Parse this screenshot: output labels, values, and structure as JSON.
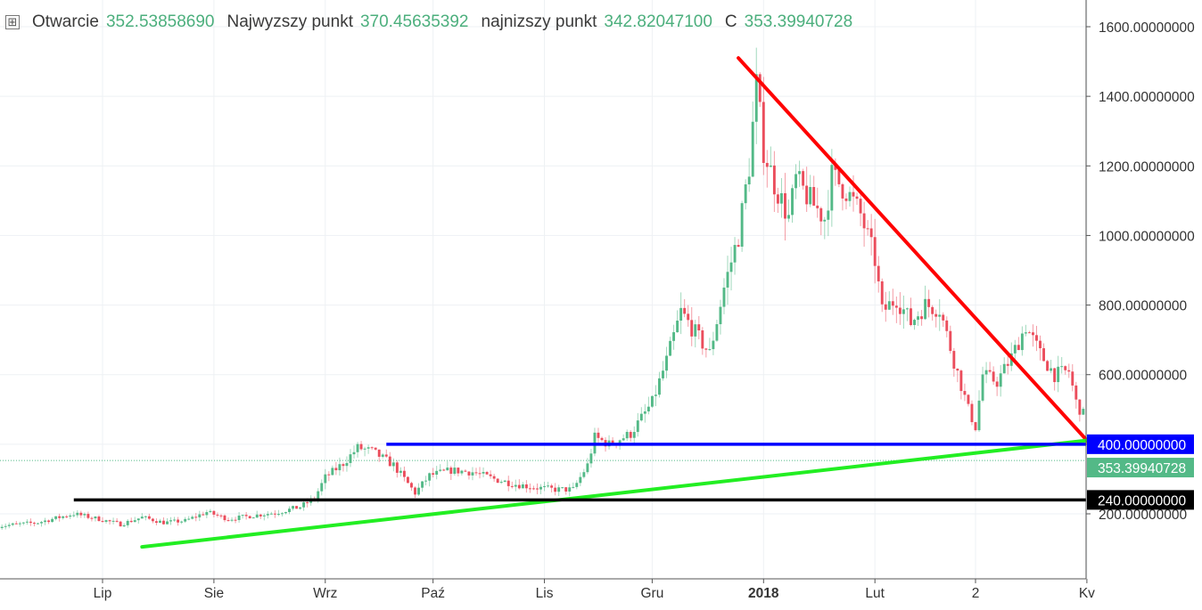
{
  "header": {
    "toggle_symbol": "⊞",
    "open_label": "Otwarcie",
    "open_value": "352.53858690",
    "high_label": "Najwyzszy punkt",
    "high_value": "370.45635392",
    "low_label": "najnizszy punkt",
    "low_value": "342.82047100",
    "close_label": "C",
    "close_value": "353.39940728"
  },
  "colors": {
    "up": "#53b987",
    "down": "#eb4d5c",
    "grid": "#eef1f4",
    "axis_text": "#333333",
    "resistance_line": "#ff0000",
    "support_line": "#22ee22",
    "level_400": "#0000ff",
    "level_240": "#000000",
    "price_badge": "#53b987"
  },
  "chart_data": {
    "type": "candlestick",
    "title": "",
    "xlabel": "",
    "ylabel": "",
    "ylim": [
      70,
      1650
    ],
    "y_ticks": [
      200,
      400,
      600,
      800,
      1000,
      1200,
      1400,
      1600
    ],
    "y_tick_labels": [
      "200.00000000",
      "400.00000000",
      "600.00000000",
      "800.00000000",
      "1000.00000000",
      "1200.00000000",
      "1400.00000000",
      "1600.00000000"
    ],
    "x_tick_labels": [
      {
        "label": "Lip",
        "day": 13
      },
      {
        "label": "Sie",
        "day": 44
      },
      {
        "label": "Wrz",
        "day": 75
      },
      {
        "label": "Paź",
        "day": 105
      },
      {
        "label": "Lis",
        "day": 136
      },
      {
        "label": "Gru",
        "day": 166
      },
      {
        "label": "2018",
        "day": 197,
        "bold": true
      },
      {
        "label": "Lut",
        "day": 228
      },
      {
        "label": "2",
        "day": 256
      },
      {
        "label": "Kv",
        "day": 287
      }
    ],
    "day_range": [
      -16,
      288
    ],
    "series": [
      {
        "name": "",
        "kind": "candles",
        "anchors": [
          [
            -16,
            165
          ],
          [
            -5,
            175
          ],
          [
            5,
            200
          ],
          [
            12,
            185
          ],
          [
            18,
            170
          ],
          [
            24,
            190
          ],
          [
            30,
            175
          ],
          [
            36,
            180
          ],
          [
            42,
            205
          ],
          [
            48,
            185
          ],
          [
            55,
            195
          ],
          [
            62,
            205
          ],
          [
            68,
            220
          ],
          [
            72,
            245
          ],
          [
            75,
            305
          ],
          [
            80,
            345
          ],
          [
            84,
            390
          ],
          [
            88,
            380
          ],
          [
            94,
            340
          ],
          [
            100,
            260
          ],
          [
            104,
            310
          ],
          [
            110,
            325
          ],
          [
            116,
            320
          ],
          [
            122,
            300
          ],
          [
            128,
            285
          ],
          [
            134,
            275
          ],
          [
            139,
            270
          ],
          [
            144,
            270
          ],
          [
            148,
            340
          ],
          [
            150,
            420
          ],
          [
            154,
            400
          ],
          [
            160,
            430
          ],
          [
            166,
            520
          ],
          [
            170,
            640
          ],
          [
            174,
            780
          ],
          [
            178,
            720
          ],
          [
            182,
            660
          ],
          [
            186,
            850
          ],
          [
            190,
            1000
          ],
          [
            193,
            1200
          ],
          [
            195,
            1430
          ],
          [
            197,
            1250
          ],
          [
            200,
            1150
          ],
          [
            204,
            1050
          ],
          [
            206,
            1160
          ],
          [
            210,
            1100
          ],
          [
            214,
            1050
          ],
          [
            216,
            1170
          ],
          [
            220,
            1130
          ],
          [
            224,
            1060
          ],
          [
            228,
            930
          ],
          [
            230,
            780
          ],
          [
            234,
            820
          ],
          [
            238,
            750
          ],
          [
            242,
            800
          ],
          [
            246,
            790
          ],
          [
            250,
            640
          ],
          [
            254,
            500
          ],
          [
            256,
            450
          ],
          [
            258,
            600
          ],
          [
            262,
            580
          ],
          [
            266,
            650
          ],
          [
            270,
            740
          ],
          [
            274,
            660
          ],
          [
            278,
            600
          ],
          [
            282,
            610
          ],
          [
            284,
            520
          ],
          [
            288,
            450
          ]
        ]
      },
      {
        "name": "",
        "kind": "current_price",
        "value": 353.39940728,
        "label": "353.39940728"
      }
    ],
    "annotations": [
      {
        "kind": "trendline",
        "color": "red",
        "from": {
          "day": 190,
          "price": 1510
        },
        "to": {
          "day": 288,
          "price": 400
        }
      },
      {
        "kind": "trendline",
        "color": "green",
        "from": {
          "day": 24,
          "price": 105
        },
        "to": {
          "day": 288,
          "price": 412
        }
      },
      {
        "kind": "horizontal",
        "color": "blue",
        "price": 400,
        "from_day": 92,
        "label": "400.00000000"
      },
      {
        "kind": "horizontal",
        "color": "black",
        "price": 240,
        "from_day": 5,
        "label": "240.00000000"
      }
    ]
  }
}
